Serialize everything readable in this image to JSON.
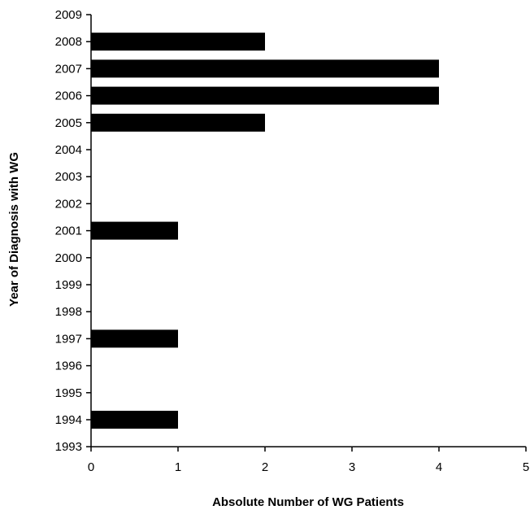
{
  "chart_data": {
    "type": "bar",
    "orientation": "horizontal",
    "title": "",
    "xlabel": "Absolute Number of WG Patients",
    "ylabel": "Year of Diagnosis with WG",
    "xlim": [
      0,
      5
    ],
    "x_ticks": [
      "0",
      "1",
      "2",
      "3",
      "4",
      "5"
    ],
    "y_ticks": [
      "2009",
      "2008",
      "2007",
      "2006",
      "2005",
      "2004",
      "2003",
      "2002",
      "2001",
      "2000",
      "1999",
      "1998",
      "1997",
      "1996",
      "1995",
      "1994",
      "1993"
    ],
    "categories": [
      "2008",
      "2007",
      "2006",
      "2005",
      "2004",
      "2003",
      "2002",
      "2001",
      "2000",
      "1999",
      "1998",
      "1997",
      "1996",
      "1995",
      "1994"
    ],
    "values": [
      2,
      4,
      4,
      2,
      0,
      0,
      0,
      1,
      0,
      0,
      0,
      1,
      0,
      0,
      1
    ],
    "bar_color": "#000000",
    "grid": false,
    "legend": "none"
  }
}
